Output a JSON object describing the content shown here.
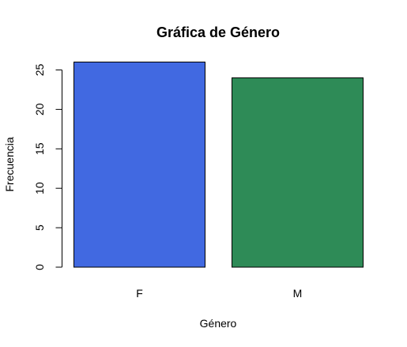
{
  "chart_data": {
    "type": "bar",
    "title": "Gráfica de Género",
    "xlabel": "Género",
    "ylabel": "Frecuencia",
    "categories": [
      "F",
      "M"
    ],
    "values": [
      26,
      24
    ],
    "colors": [
      "#4169e1",
      "#2e8b57"
    ],
    "ylim": [
      0,
      26
    ],
    "yticks": [
      0,
      5,
      10,
      15,
      20,
      25
    ],
    "grid": false,
    "legend": "none"
  }
}
